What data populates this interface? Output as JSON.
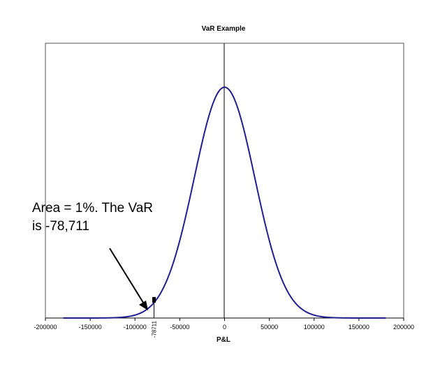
{
  "chart_data": {
    "type": "line",
    "title": "VaR Example",
    "xlabel": "P&L",
    "ylabel": "",
    "xlim": [
      -200000,
      200000
    ],
    "xticks": [
      "-200000",
      "-150000",
      "-100000",
      "-50000",
      "0",
      "50000",
      "100000",
      "150000",
      "200000"
    ],
    "grid": false,
    "legend": "none",
    "series": [
      {
        "distribution": "normal",
        "mean": 0,
        "std_dev": 33834,
        "x_range": [
          -180000,
          180000
        ],
        "color": "#1f1f8f"
      }
    ],
    "var_marker": {
      "x": -78711,
      "label": "-78711"
    },
    "annotation": {
      "line1": "Area = 1%. The VaR",
      "line2": "is -78,711"
    }
  }
}
